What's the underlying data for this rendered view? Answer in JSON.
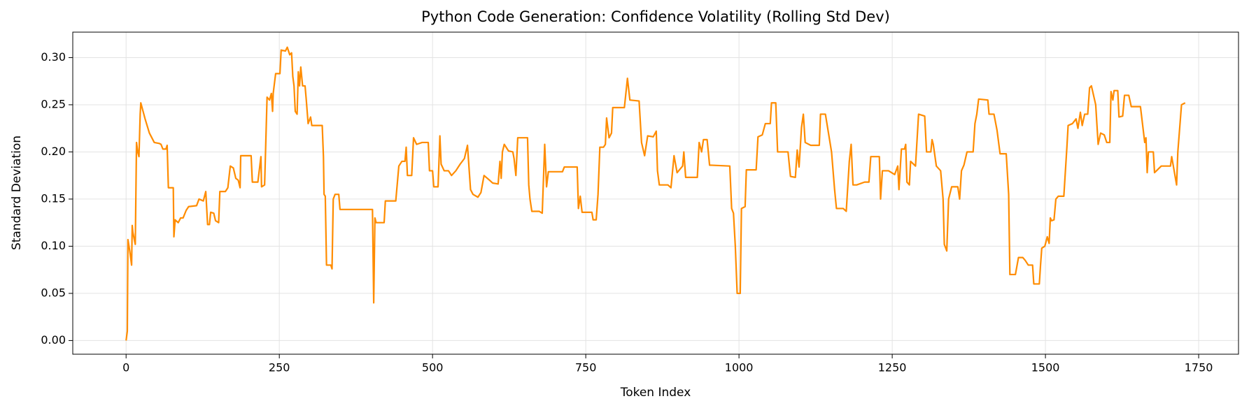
{
  "chart_data": {
    "type": "line",
    "title": "Python Code Generation: Confidence Volatility (Rolling Std Dev)",
    "xlabel": "Token Index",
    "ylabel": "Standard Deviation",
    "color": "#ff8c00",
    "grid": true,
    "xlim": [
      -87,
      1815
    ],
    "ylim": [
      -0.0145,
      0.327
    ],
    "xticks": [
      0,
      250,
      500,
      750,
      1000,
      1250,
      1500,
      1750
    ],
    "yticks": [
      {
        "value": 0,
        "label": "0.00"
      },
      0.05,
      {
        "value": 0.1,
        "label": "0.10"
      },
      0.15,
      {
        "value": 0.2,
        "label": "0.20"
      },
      0.25,
      {
        "value": 0.3,
        "label": "0.30"
      }
    ],
    "x": [
      0,
      2,
      3,
      6,
      8,
      9,
      10,
      11,
      14,
      15,
      17,
      19,
      21,
      23,
      24,
      31,
      38,
      46,
      54,
      57,
      60,
      65,
      67,
      69,
      77,
      78,
      80,
      85,
      89,
      93,
      98,
      102,
      115,
      119,
      126,
      130,
      133,
      136,
      138,
      143,
      146,
      151,
      153,
      162,
      166,
      170,
      175,
      179,
      183,
      186,
      187,
      204,
      206,
      215,
      220,
      221,
      226,
      230,
      234,
      237,
      239,
      240,
      244,
      251,
      253,
      260,
      263,
      267,
      270,
      272,
      274,
      276,
      279,
      281,
      283,
      285,
      288,
      292,
      294,
      297,
      301,
      303,
      320,
      322,
      323,
      325,
      327,
      334,
      336,
      338,
      341,
      347,
      349,
      402,
      404,
      406,
      408,
      421,
      423,
      440,
      445,
      450,
      455,
      457,
      459,
      466,
      469,
      474,
      483,
      493,
      495,
      500,
      502,
      509,
      512,
      514,
      519,
      526,
      531,
      538,
      545,
      552,
      557,
      562,
      566,
      574,
      579,
      584,
      593,
      598,
      607,
      610,
      612,
      614,
      617,
      624,
      631,
      633,
      636,
      639,
      655,
      657,
      659,
      662,
      674,
      679,
      683,
      686,
      689,
      712,
      715,
      736,
      738,
      741,
      744,
      760,
      762,
      767,
      770,
      773,
      779,
      782,
      784,
      788,
      792,
      794,
      813,
      818,
      822,
      837,
      841,
      846,
      851,
      860,
      865,
      867,
      870,
      884,
      889,
      894,
      899,
      908,
      910,
      913,
      932,
      935,
      939,
      942,
      948,
      952,
      985,
      988,
      991,
      994,
      997,
      1002,
      1004,
      1010,
      1012,
      1028,
      1031,
      1038,
      1043,
      1051,
      1053,
      1060,
      1063,
      1080,
      1084,
      1092,
      1095,
      1098,
      1102,
      1105,
      1108,
      1117,
      1131,
      1133,
      1141,
      1146,
      1151,
      1156,
      1159,
      1170,
      1175,
      1180,
      1183,
      1186,
      1192,
      1205,
      1212,
      1215,
      1229,
      1231,
      1234,
      1244,
      1254,
      1259,
      1261,
      1265,
      1270,
      1272,
      1274,
      1278,
      1280,
      1288,
      1293,
      1303,
      1306,
      1313,
      1315,
      1317,
      1322,
      1329,
      1333,
      1335,
      1339,
      1342,
      1347,
      1357,
      1360,
      1363,
      1367,
      1372,
      1382,
      1385,
      1388,
      1391,
      1406,
      1408,
      1416,
      1421,
      1426,
      1436,
      1440,
      1442,
      1451,
      1456,
      1463,
      1467,
      1472,
      1479,
      1481,
      1490,
      1492,
      1494,
      1499,
      1503,
      1506,
      1508,
      1510,
      1514,
      1517,
      1521,
      1530,
      1535,
      1537,
      1544,
      1550,
      1553,
      1557,
      1560,
      1564,
      1569,
      1572,
      1575,
      1582,
      1586,
      1590,
      1596,
      1600,
      1605,
      1607,
      1610,
      1612,
      1618,
      1620,
      1626,
      1629,
      1636,
      1640,
      1655,
      1662,
      1664,
      1666,
      1668,
      1676,
      1678,
      1689,
      1704,
      1706,
      1710,
      1714,
      1716,
      1722,
      1728
    ],
    "values": [
      0.0,
      0.01,
      0.107,
      0.095,
      0.085,
      0.08,
      0.122,
      0.115,
      0.105,
      0.102,
      0.21,
      0.2,
      0.195,
      0.24,
      0.252,
      0.235,
      0.22,
      0.21,
      0.209,
      0.208,
      0.203,
      0.203,
      0.207,
      0.162,
      0.162,
      0.11,
      0.128,
      0.125,
      0.13,
      0.13,
      0.138,
      0.142,
      0.143,
      0.15,
      0.148,
      0.158,
      0.123,
      0.123,
      0.136,
      0.135,
      0.127,
      0.125,
      0.158,
      0.158,
      0.162,
      0.185,
      0.183,
      0.172,
      0.17,
      0.162,
      0.196,
      0.196,
      0.168,
      0.168,
      0.195,
      0.163,
      0.165,
      0.258,
      0.255,
      0.262,
      0.243,
      0.262,
      0.283,
      0.283,
      0.308,
      0.307,
      0.311,
      0.303,
      0.305,
      0.28,
      0.27,
      0.243,
      0.24,
      0.285,
      0.27,
      0.29,
      0.27,
      0.27,
      0.255,
      0.23,
      0.237,
      0.228,
      0.228,
      0.195,
      0.155,
      0.153,
      0.08,
      0.08,
      0.076,
      0.15,
      0.155,
      0.155,
      0.139,
      0.139,
      0.04,
      0.13,
      0.125,
      0.125,
      0.148,
      0.148,
      0.185,
      0.19,
      0.19,
      0.205,
      0.175,
      0.175,
      0.215,
      0.208,
      0.21,
      0.21,
      0.18,
      0.18,
      0.163,
      0.163,
      0.217,
      0.187,
      0.18,
      0.18,
      0.175,
      0.18,
      0.187,
      0.193,
      0.207,
      0.16,
      0.155,
      0.152,
      0.157,
      0.175,
      0.17,
      0.167,
      0.166,
      0.19,
      0.172,
      0.2,
      0.208,
      0.201,
      0.2,
      0.193,
      0.175,
      0.215,
      0.215,
      0.165,
      0.15,
      0.137,
      0.137,
      0.135,
      0.208,
      0.163,
      0.179,
      0.179,
      0.184,
      0.184,
      0.14,
      0.153,
      0.136,
      0.136,
      0.128,
      0.128,
      0.155,
      0.205,
      0.205,
      0.208,
      0.236,
      0.215,
      0.22,
      0.247,
      0.247,
      0.278,
      0.255,
      0.254,
      0.21,
      0.196,
      0.217,
      0.216,
      0.222,
      0.18,
      0.165,
      0.165,
      0.162,
      0.196,
      0.178,
      0.185,
      0.2,
      0.173,
      0.173,
      0.21,
      0.2,
      0.213,
      0.213,
      0.186,
      0.185,
      0.14,
      0.135,
      0.1,
      0.05,
      0.05,
      0.14,
      0.142,
      0.181,
      0.181,
      0.216,
      0.218,
      0.23,
      0.23,
      0.252,
      0.252,
      0.2,
      0.2,
      0.174,
      0.173,
      0.202,
      0.184,
      0.226,
      0.24,
      0.21,
      0.207,
      0.207,
      0.24,
      0.24,
      0.22,
      0.2,
      0.16,
      0.14,
      0.14,
      0.137,
      0.19,
      0.208,
      0.165,
      0.165,
      0.168,
      0.168,
      0.195,
      0.195,
      0.15,
      0.18,
      0.18,
      0.176,
      0.185,
      0.16,
      0.203,
      0.203,
      0.208,
      0.168,
      0.165,
      0.19,
      0.185,
      0.24,
      0.238,
      0.2,
      0.2,
      0.213,
      0.208,
      0.185,
      0.18,
      0.15,
      0.102,
      0.095,
      0.15,
      0.163,
      0.163,
      0.15,
      0.18,
      0.186,
      0.2,
      0.2,
      0.23,
      0.24,
      0.256,
      0.255,
      0.24,
      0.24,
      0.223,
      0.198,
      0.198,
      0.155,
      0.07,
      0.07,
      0.088,
      0.088,
      0.085,
      0.08,
      0.08,
      0.06,
      0.06,
      0.08,
      0.098,
      0.1,
      0.11,
      0.103,
      0.13,
      0.127,
      0.128,
      0.15,
      0.153,
      0.153,
      0.205,
      0.228,
      0.23,
      0.235,
      0.225,
      0.242,
      0.228,
      0.24,
      0.24,
      0.268,
      0.27,
      0.25,
      0.208,
      0.22,
      0.218,
      0.21,
      0.21,
      0.264,
      0.255,
      0.265,
      0.265,
      0.237,
      0.238,
      0.26,
      0.26,
      0.248,
      0.248,
      0.21,
      0.215,
      0.178,
      0.2,
      0.2,
      0.178,
      0.185,
      0.185,
      0.195,
      0.18,
      0.165,
      0.2,
      0.25,
      0.252
    ]
  }
}
